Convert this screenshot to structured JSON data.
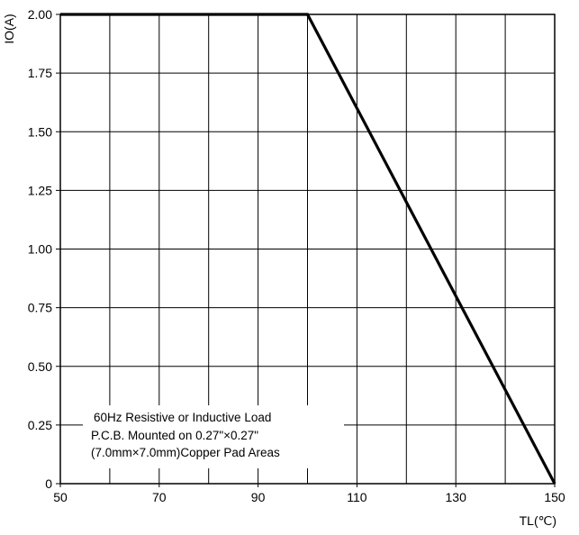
{
  "chart_data": {
    "type": "line",
    "title": "",
    "xlabel": "TL(℃)",
    "ylabel": "IO(A)",
    "xlim": [
      50,
      150
    ],
    "ylim": [
      0,
      2.0
    ],
    "grid": true,
    "x_grid_step": 10,
    "y_grid_step": 0.25,
    "x_ticks": [
      50,
      70,
      90,
      110,
      130,
      150
    ],
    "x_tick_labels": [
      "50",
      "70",
      "90",
      "110",
      "130",
      "150"
    ],
    "y_ticks": [
      0,
      0.25,
      0.5,
      0.75,
      1.0,
      1.25,
      1.5,
      1.75,
      2.0
    ],
    "y_tick_labels": [
      "0",
      "0.25",
      "0.50",
      "0.75",
      "1.00",
      "1.25",
      "1.50",
      "1.75",
      "2.00"
    ],
    "series": [
      {
        "x": [
          50,
          100,
          150
        ],
        "y": [
          2.0,
          2.0,
          0
        ]
      }
    ],
    "annotation": [
      "60Hz Resistive or Inductive Load",
      "P.C.B. Mounted on 0.27\"×0.27\"",
      "(7.0mm×7.0mm)Copper Pad Areas"
    ]
  }
}
